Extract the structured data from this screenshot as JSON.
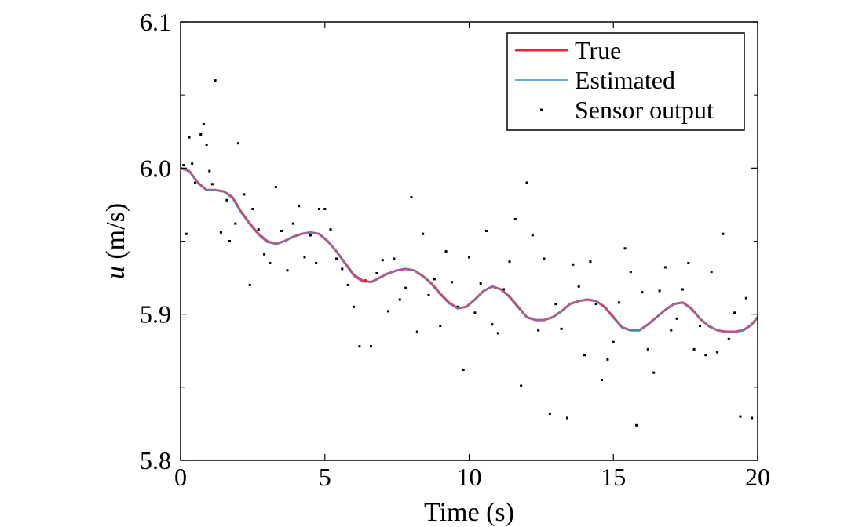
{
  "chart_data": {
    "type": "line",
    "title": "",
    "xlabel": "Time (s)",
    "ylabel_var": "u",
    "ylabel_unit": " (m/s)",
    "xlim": [
      0,
      20
    ],
    "ylim": [
      5.8,
      6.1
    ],
    "xticks": [
      0,
      5,
      10,
      15,
      20
    ],
    "xtick_labels": [
      "0",
      "5",
      "10",
      "15",
      "20"
    ],
    "yticks": [
      5.8,
      5.9,
      6.0,
      6.1
    ],
    "ytick_labels": [
      "5.8",
      "5.9",
      "6.0",
      "6.1"
    ],
    "yminor_ticks": [
      5.85,
      5.95,
      6.05
    ],
    "grid": false,
    "legend_position": "top-right",
    "colors": {
      "true": "#e8263a",
      "estimated": "#3a8fd8",
      "sensor": "#000000"
    },
    "series": [
      {
        "name": "True",
        "style": "line",
        "x": [
          0,
          0.3,
          0.6,
          0.9,
          1.2,
          1.5,
          1.8,
          2.1,
          2.4,
          2.7,
          3.0,
          3.3,
          3.6,
          3.9,
          4.2,
          4.5,
          4.8,
          5.1,
          5.4,
          5.7,
          6.0,
          6.3,
          6.6,
          6.9,
          7.2,
          7.5,
          7.8,
          8.1,
          8.4,
          8.7,
          9.0,
          9.3,
          9.6,
          9.9,
          10.2,
          10.5,
          10.8,
          11.1,
          11.4,
          11.7,
          12.0,
          12.3,
          12.6,
          12.9,
          13.2,
          13.5,
          13.8,
          14.1,
          14.4,
          14.7,
          15.0,
          15.3,
          15.6,
          15.9,
          16.2,
          16.5,
          16.8,
          17.1,
          17.4,
          17.7,
          18.0,
          18.3,
          18.6,
          18.9,
          19.2,
          19.5,
          19.8,
          20.0
        ],
        "y": [
          6.0,
          5.998,
          5.99,
          5.985,
          5.985,
          5.984,
          5.98,
          5.97,
          5.962,
          5.955,
          5.95,
          5.948,
          5.95,
          5.953,
          5.955,
          5.956,
          5.955,
          5.95,
          5.943,
          5.935,
          5.927,
          5.923,
          5.922,
          5.925,
          5.928,
          5.93,
          5.931,
          5.93,
          5.926,
          5.921,
          5.914,
          5.908,
          5.904,
          5.905,
          5.91,
          5.916,
          5.919,
          5.917,
          5.912,
          5.905,
          5.898,
          5.896,
          5.896,
          5.898,
          5.902,
          5.907,
          5.909,
          5.91,
          5.909,
          5.905,
          5.898,
          5.891,
          5.889,
          5.889,
          5.893,
          5.898,
          5.903,
          5.907,
          5.908,
          5.904,
          5.897,
          5.892,
          5.889,
          5.888,
          5.888,
          5.889,
          5.893,
          5.898
        ]
      },
      {
        "name": "Estimated",
        "style": "line",
        "x": [
          0,
          0.3,
          0.6,
          0.9,
          1.2,
          1.5,
          1.8,
          2.1,
          2.4,
          2.7,
          3.0,
          3.3,
          3.6,
          3.9,
          4.2,
          4.5,
          4.8,
          5.1,
          5.4,
          5.7,
          6.0,
          6.3,
          6.6,
          6.9,
          7.2,
          7.5,
          7.8,
          8.1,
          8.4,
          8.7,
          9.0,
          9.3,
          9.6,
          9.9,
          10.2,
          10.5,
          10.8,
          11.1,
          11.4,
          11.7,
          12.0,
          12.3,
          12.6,
          12.9,
          13.2,
          13.5,
          13.8,
          14.1,
          14.4,
          14.7,
          15.0,
          15.3,
          15.6,
          15.9,
          16.2,
          16.5,
          16.8,
          17.1,
          17.4,
          17.7,
          18.0,
          18.3,
          18.6,
          18.9,
          19.2,
          19.5,
          19.8,
          20.0
        ],
        "y": [
          6.0,
          5.998,
          5.989,
          5.985,
          5.985,
          5.984,
          5.979,
          5.969,
          5.961,
          5.954,
          5.949,
          5.948,
          5.95,
          5.953,
          5.955,
          5.956,
          5.955,
          5.95,
          5.943,
          5.934,
          5.926,
          5.922,
          5.922,
          5.925,
          5.928,
          5.93,
          5.931,
          5.93,
          5.926,
          5.92,
          5.913,
          5.907,
          5.904,
          5.905,
          5.91,
          5.916,
          5.919,
          5.917,
          5.911,
          5.904,
          5.898,
          5.896,
          5.896,
          5.898,
          5.902,
          5.907,
          5.909,
          5.91,
          5.909,
          5.904,
          5.897,
          5.891,
          5.889,
          5.889,
          5.893,
          5.898,
          5.903,
          5.907,
          5.908,
          5.903,
          5.897,
          5.892,
          5.889,
          5.888,
          5.888,
          5.889,
          5.893,
          5.898
        ]
      },
      {
        "name": "Sensor output",
        "style": "scatter",
        "x": [
          0.1,
          0.2,
          0.3,
          0.4,
          0.5,
          0.7,
          0.8,
          0.9,
          1.0,
          1.1,
          1.2,
          1.4,
          1.6,
          1.7,
          1.9,
          2.0,
          2.2,
          2.4,
          2.5,
          2.7,
          2.9,
          3.1,
          3.3,
          3.5,
          3.7,
          3.9,
          4.1,
          4.3,
          4.5,
          4.7,
          4.8,
          5.0,
          5.2,
          5.4,
          5.6,
          5.8,
          6.0,
          6.2,
          6.4,
          6.6,
          6.8,
          7.0,
          7.2,
          7.4,
          7.6,
          7.8,
          8.0,
          8.2,
          8.4,
          8.6,
          8.8,
          9.0,
          9.2,
          9.4,
          9.6,
          9.8,
          10.0,
          10.2,
          10.4,
          10.6,
          10.8,
          11.0,
          11.2,
          11.4,
          11.6,
          11.8,
          12.0,
          12.2,
          12.4,
          12.6,
          12.8,
          13.0,
          13.2,
          13.4,
          13.6,
          13.8,
          14.0,
          14.2,
          14.4,
          14.6,
          14.8,
          15.0,
          15.2,
          15.4,
          15.6,
          15.8,
          16.0,
          16.2,
          16.4,
          16.6,
          16.8,
          17.0,
          17.2,
          17.4,
          17.6,
          17.8,
          18.0,
          18.2,
          18.4,
          18.6,
          18.8,
          19.0,
          19.2,
          19.4,
          19.6,
          19.8
        ],
        "y": [
          6.002,
          5.955,
          6.021,
          6.003,
          5.99,
          6.023,
          6.03,
          6.016,
          5.998,
          5.989,
          6.06,
          5.956,
          5.978,
          5.95,
          5.962,
          6.017,
          5.982,
          5.92,
          5.972,
          5.958,
          5.941,
          5.935,
          5.987,
          5.957,
          5.93,
          5.962,
          5.974,
          5.939,
          5.954,
          5.935,
          5.972,
          5.972,
          5.958,
          5.938,
          5.931,
          5.92,
          5.905,
          5.878,
          5.923,
          5.878,
          5.928,
          5.937,
          5.902,
          5.938,
          5.91,
          5.918,
          5.98,
          5.888,
          5.955,
          5.913,
          5.924,
          5.892,
          5.943,
          5.922,
          5.905,
          5.862,
          5.939,
          5.901,
          5.921,
          5.957,
          5.893,
          5.887,
          5.917,
          5.936,
          5.965,
          5.851,
          5.99,
          5.954,
          5.889,
          5.938,
          5.832,
          5.907,
          5.89,
          5.829,
          5.934,
          5.919,
          5.872,
          5.936,
          5.907,
          5.855,
          5.869,
          5.881,
          5.908,
          5.945,
          5.929,
          5.824,
          5.915,
          5.876,
          5.86,
          5.916,
          5.932,
          5.889,
          5.897,
          5.917,
          5.935,
          5.876,
          5.892,
          5.872,
          5.929,
          5.874,
          5.955,
          5.883,
          5.901,
          5.83,
          5.911,
          5.829
        ]
      }
    ]
  }
}
